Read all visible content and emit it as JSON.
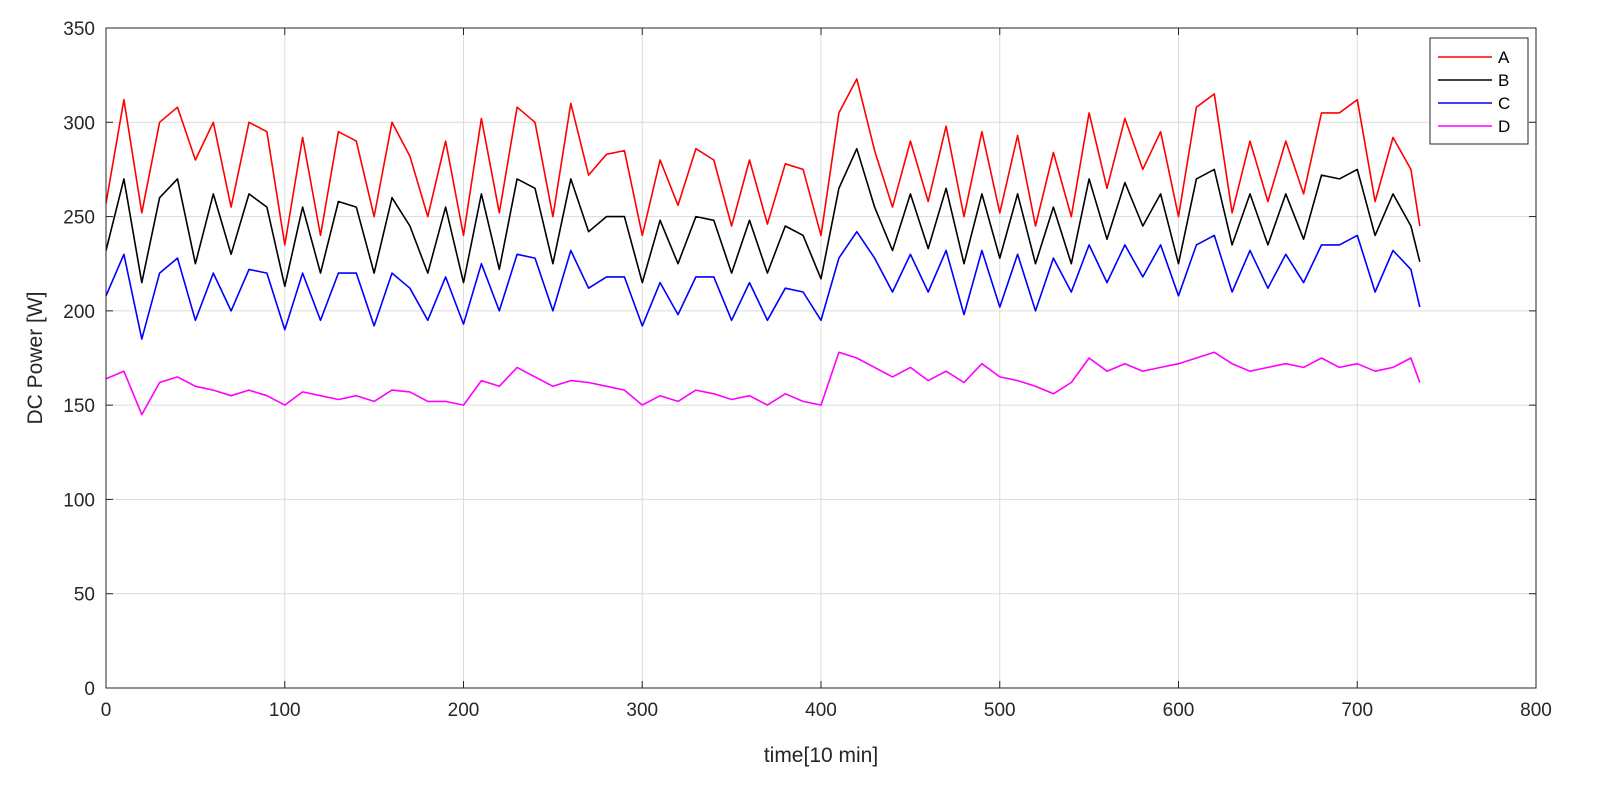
{
  "chart_data": {
    "type": "line",
    "title": "",
    "xlabel": "time[10 min]",
    "ylabel": "DC Power [W]",
    "xlim": [
      0,
      800
    ],
    "ylim": [
      0,
      350
    ],
    "xticks": [
      0,
      100,
      200,
      300,
      400,
      500,
      600,
      700,
      800
    ],
    "yticks": [
      0,
      50,
      100,
      150,
      200,
      250,
      300,
      350
    ],
    "grid": true,
    "legend_position": "top-right",
    "x": [
      0,
      10,
      20,
      30,
      40,
      50,
      60,
      70,
      80,
      90,
      100,
      110,
      120,
      130,
      140,
      150,
      160,
      170,
      180,
      190,
      200,
      210,
      220,
      230,
      240,
      250,
      260,
      270,
      280,
      290,
      300,
      310,
      320,
      330,
      340,
      350,
      360,
      370,
      380,
      390,
      400,
      410,
      420,
      430,
      440,
      450,
      460,
      470,
      480,
      490,
      500,
      510,
      520,
      530,
      540,
      550,
      560,
      570,
      580,
      590,
      600,
      610,
      620,
      630,
      640,
      650,
      660,
      670,
      680,
      690,
      700,
      710,
      720,
      730,
      735
    ],
    "series": [
      {
        "name": "A",
        "color": "#ff0000",
        "values": [
          257,
          312,
          252,
          300,
          308,
          280,
          300,
          255,
          300,
          295,
          235,
          292,
          240,
          295,
          290,
          250,
          300,
          282,
          250,
          290,
          240,
          302,
          252,
          308,
          300,
          250,
          310,
          272,
          283,
          285,
          240,
          280,
          256,
          286,
          280,
          245,
          280,
          246,
          278,
          275,
          240,
          305,
          323,
          285,
          255,
          290,
          258,
          298,
          250,
          295,
          252,
          293,
          245,
          284,
          250,
          305,
          265,
          302,
          275,
          295,
          250,
          308,
          315,
          252,
          290,
          258,
          290,
          262,
          305,
          305,
          312,
          258,
          292,
          275,
          245
        ]
      },
      {
        "name": "B",
        "color": "#000000",
        "values": [
          232,
          270,
          215,
          260,
          270,
          225,
          262,
          230,
          262,
          255,
          213,
          255,
          220,
          258,
          255,
          220,
          260,
          245,
          220,
          255,
          215,
          262,
          222,
          270,
          265,
          225,
          270,
          242,
          250,
          250,
          215,
          248,
          225,
          250,
          248,
          220,
          248,
          220,
          245,
          240,
          217,
          265,
          286,
          255,
          232,
          262,
          233,
          265,
          225,
          262,
          228,
          262,
          225,
          255,
          225,
          270,
          238,
          268,
          245,
          262,
          225,
          270,
          275,
          235,
          262,
          235,
          262,
          238,
          272,
          270,
          275,
          240,
          262,
          245,
          226
        ]
      },
      {
        "name": "C",
        "color": "#0000ff",
        "values": [
          208,
          230,
          185,
          220,
          228,
          195,
          220,
          200,
          222,
          220,
          190,
          220,
          195,
          220,
          220,
          192,
          220,
          212,
          195,
          218,
          193,
          225,
          200,
          230,
          228,
          200,
          232,
          212,
          218,
          218,
          192,
          215,
          198,
          218,
          218,
          195,
          215,
          195,
          212,
          210,
          195,
          228,
          242,
          228,
          210,
          230,
          210,
          232,
          198,
          232,
          202,
          230,
          200,
          228,
          210,
          235,
          215,
          235,
          218,
          235,
          208,
          235,
          240,
          210,
          232,
          212,
          230,
          215,
          235,
          235,
          240,
          210,
          232,
          222,
          202
        ]
      },
      {
        "name": "D",
        "color": "#ff00ff",
        "values": [
          164,
          168,
          145,
          162,
          165,
          160,
          158,
          155,
          158,
          155,
          150,
          157,
          155,
          153,
          155,
          152,
          158,
          157,
          152,
          152,
          150,
          163,
          160,
          170,
          165,
          160,
          163,
          162,
          160,
          158,
          150,
          155,
          152,
          158,
          156,
          153,
          155,
          150,
          156,
          152,
          150,
          178,
          175,
          170,
          165,
          170,
          163,
          168,
          162,
          172,
          165,
          163,
          160,
          156,
          162,
          175,
          168,
          172,
          168,
          170,
          172,
          175,
          178,
          172,
          168,
          170,
          172,
          170,
          175,
          170,
          172,
          168,
          170,
          175,
          162
        ]
      }
    ]
  }
}
